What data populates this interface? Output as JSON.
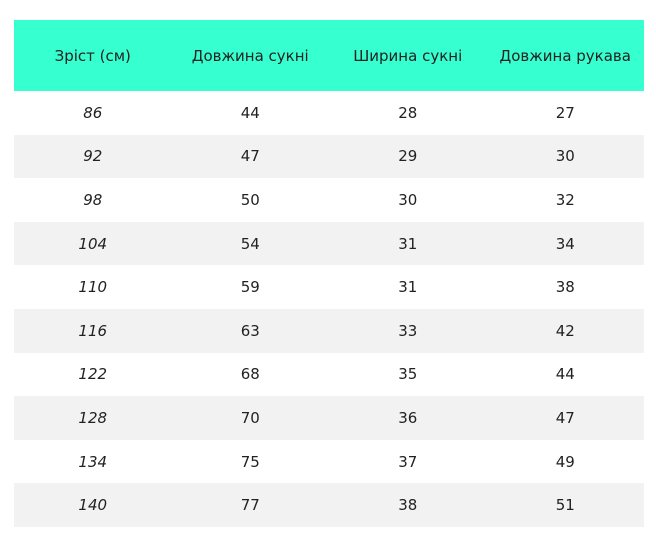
{
  "colors": {
    "header_bg": "#36ffd0",
    "alt_row_bg": "#f2f2f2"
  },
  "table": {
    "headers": [
      "Зріст (см)",
      "Довжина сукні",
      "Ширина сукні",
      "Довжина рукава"
    ],
    "rows": [
      [
        "86",
        "44",
        "28",
        "27"
      ],
      [
        "92",
        "47",
        "29",
        "30"
      ],
      [
        "98",
        "50",
        "30",
        "32"
      ],
      [
        "104",
        "54",
        "31",
        "34"
      ],
      [
        "110",
        "59",
        "31",
        "38"
      ],
      [
        "116",
        "63",
        "33",
        "42"
      ],
      [
        "122",
        "68",
        "35",
        "44"
      ],
      [
        "128",
        "70",
        "36",
        "47"
      ],
      [
        "134",
        "75",
        "37",
        "49"
      ],
      [
        "140",
        "77",
        "38",
        "51"
      ]
    ]
  }
}
